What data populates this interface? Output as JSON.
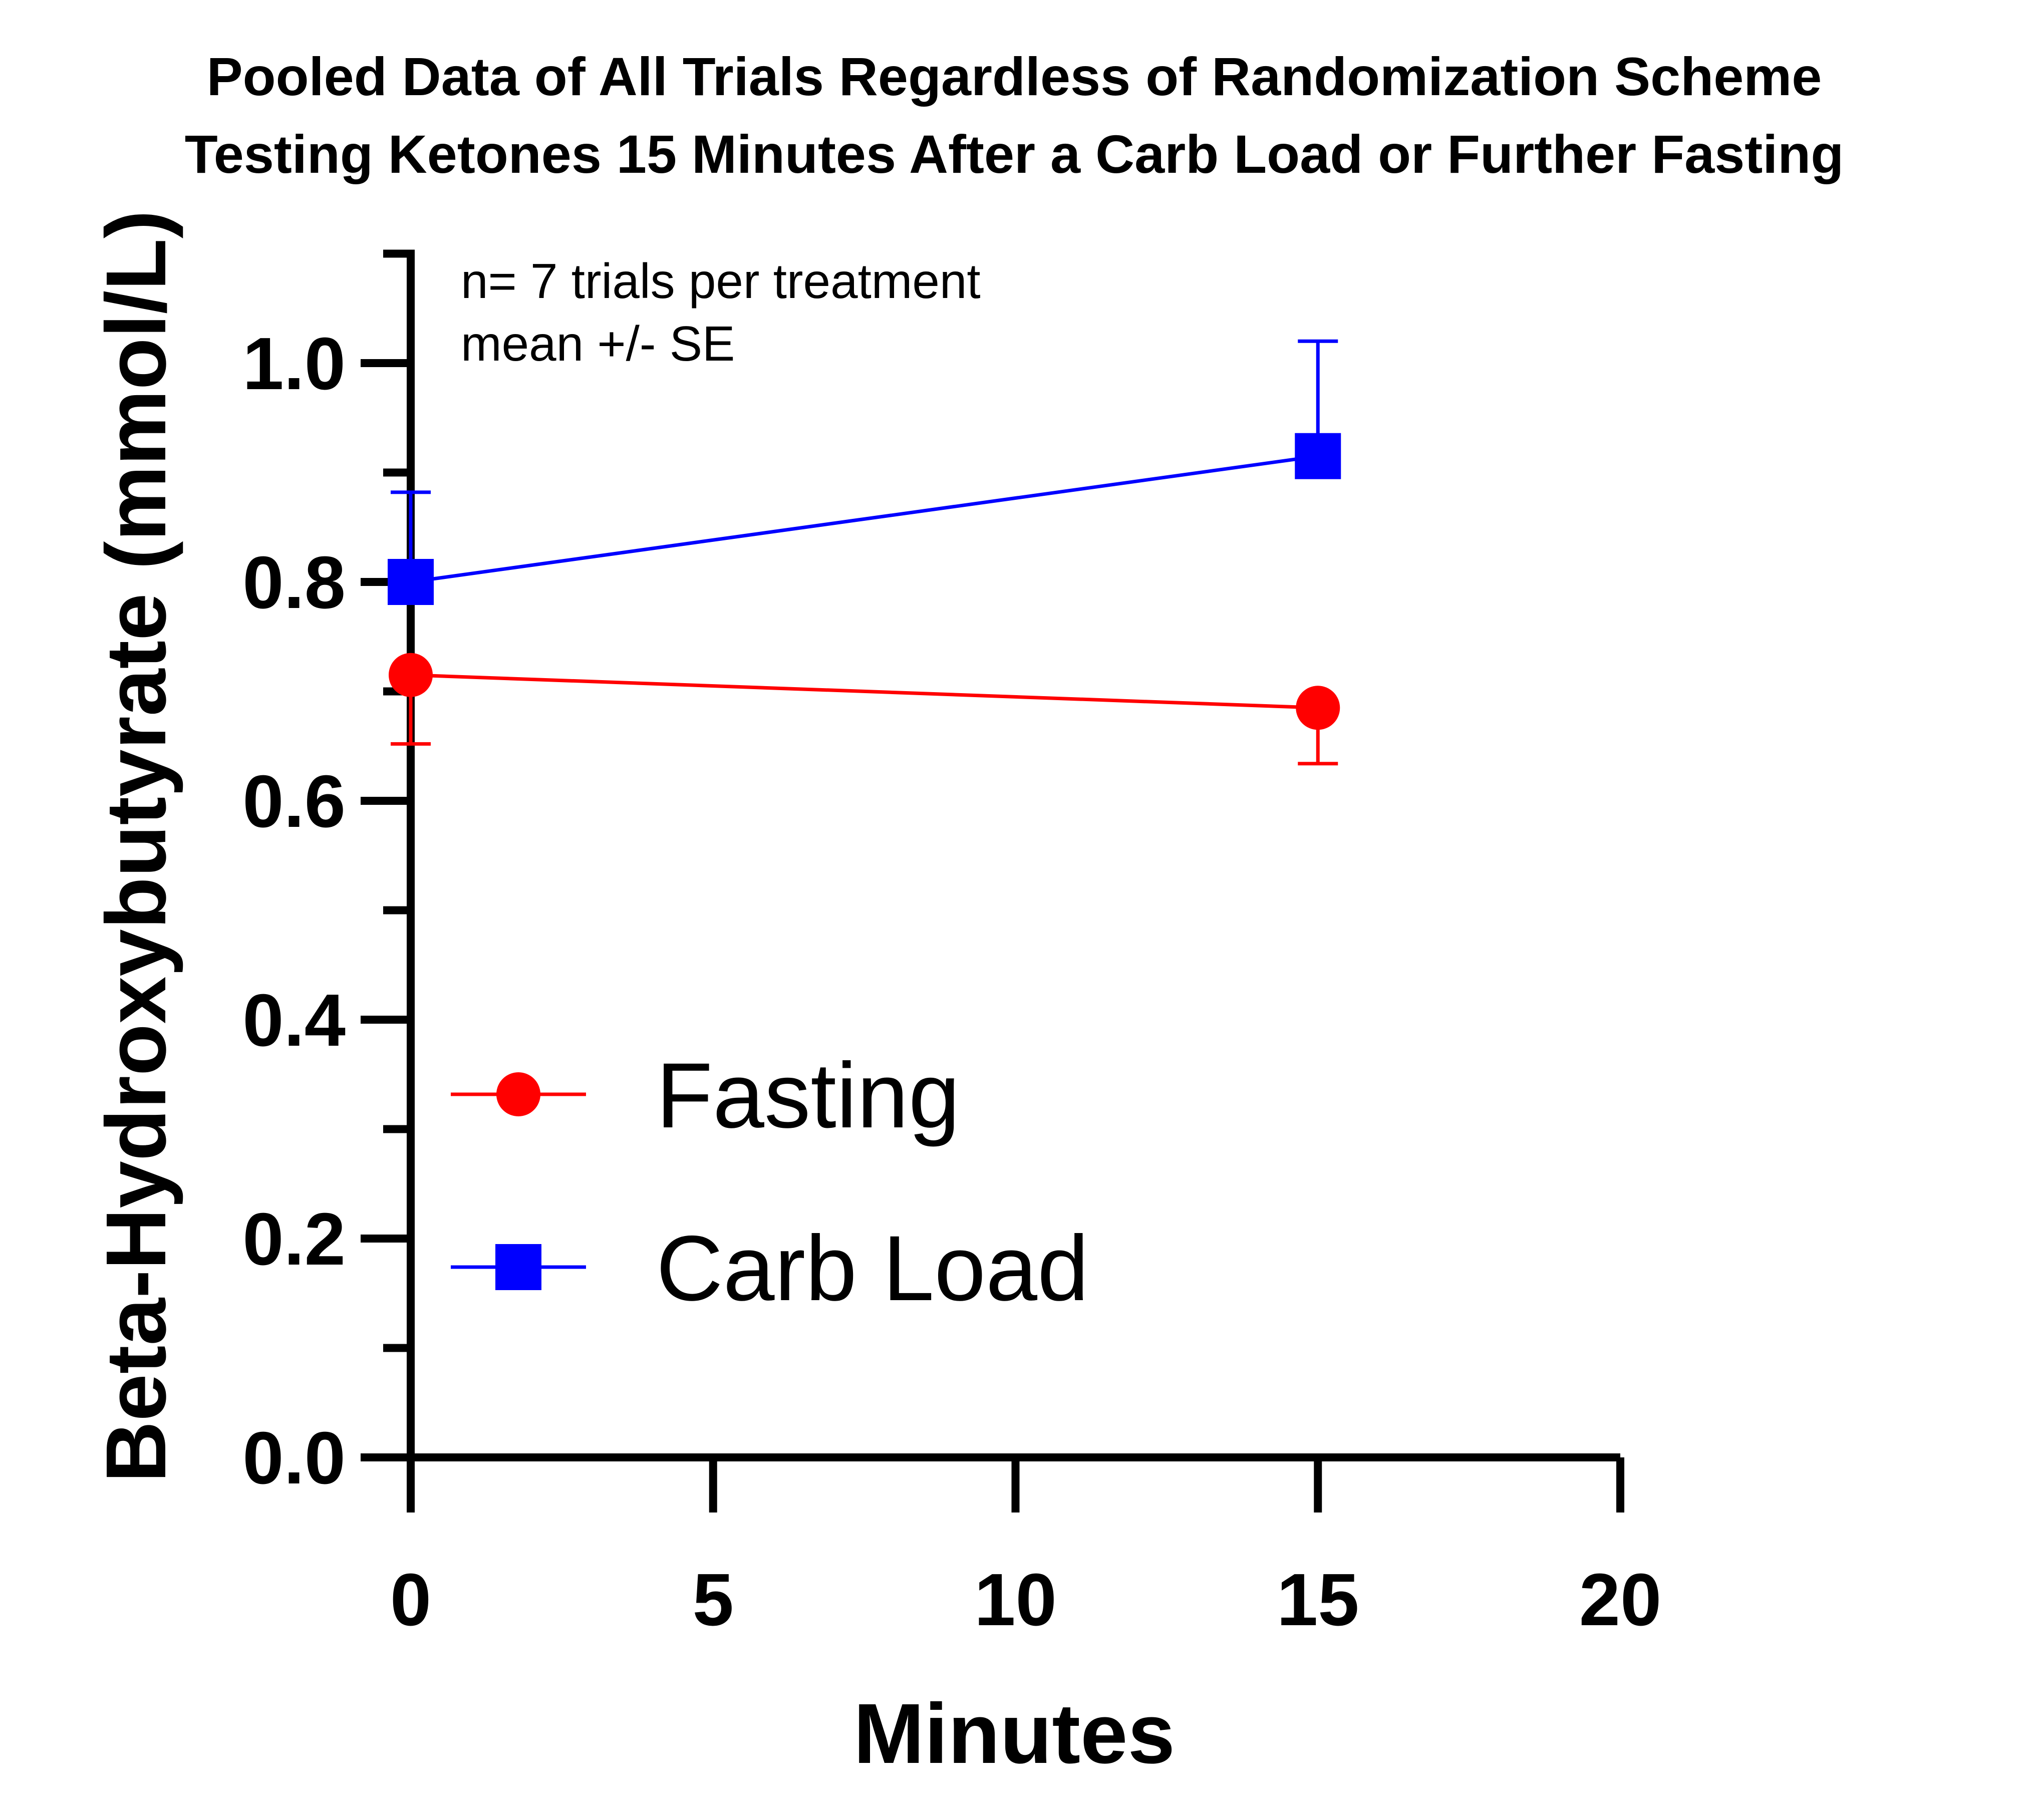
{
  "chart_data": {
    "type": "line",
    "title": [
      "Pooled Data of All Trials Regardless of Randomization Scheme",
      "Testing Ketones 15 Minutes After a Carb Load or Further Fasting"
    ],
    "xlabel": "Minutes",
    "ylabel": "Beta-Hydroxybutyrate (mmol/L)",
    "xlim": [
      0,
      20
    ],
    "ylim": [
      0,
      1.1
    ],
    "xticks": [
      0,
      5,
      10,
      15,
      20
    ],
    "xtick_labels": [
      "0",
      "5",
      "10",
      "15",
      "20"
    ],
    "yticks": [
      0,
      0.2,
      0.4,
      0.6,
      0.8,
      1.0
    ],
    "ytick_labels": [
      "0.0",
      "0.2",
      "0.4",
      "0.6",
      "0.8",
      "1.0"
    ],
    "yminor_ticks": [
      0.1,
      0.3,
      0.5,
      0.7,
      0.9,
      1.1
    ],
    "grid": false,
    "legend_position": "lower-left",
    "annotations": [
      "n= 7 trials per treatment",
      "mean +/- SE"
    ],
    "series": [
      {
        "name": "Fasting",
        "color": "#ff0000",
        "marker": "circle",
        "x": [
          0,
          15
        ],
        "y": [
          0.715,
          0.685
        ],
        "error": [
          0.063,
          0.051
        ],
        "error_direction": "down"
      },
      {
        "name": "Carb Load",
        "color": "#0000ff",
        "marker": "square",
        "x": [
          0,
          15
        ],
        "y": [
          0.8,
          0.915
        ],
        "error": [
          0.082,
          0.105
        ],
        "error_direction": "up"
      }
    ]
  }
}
